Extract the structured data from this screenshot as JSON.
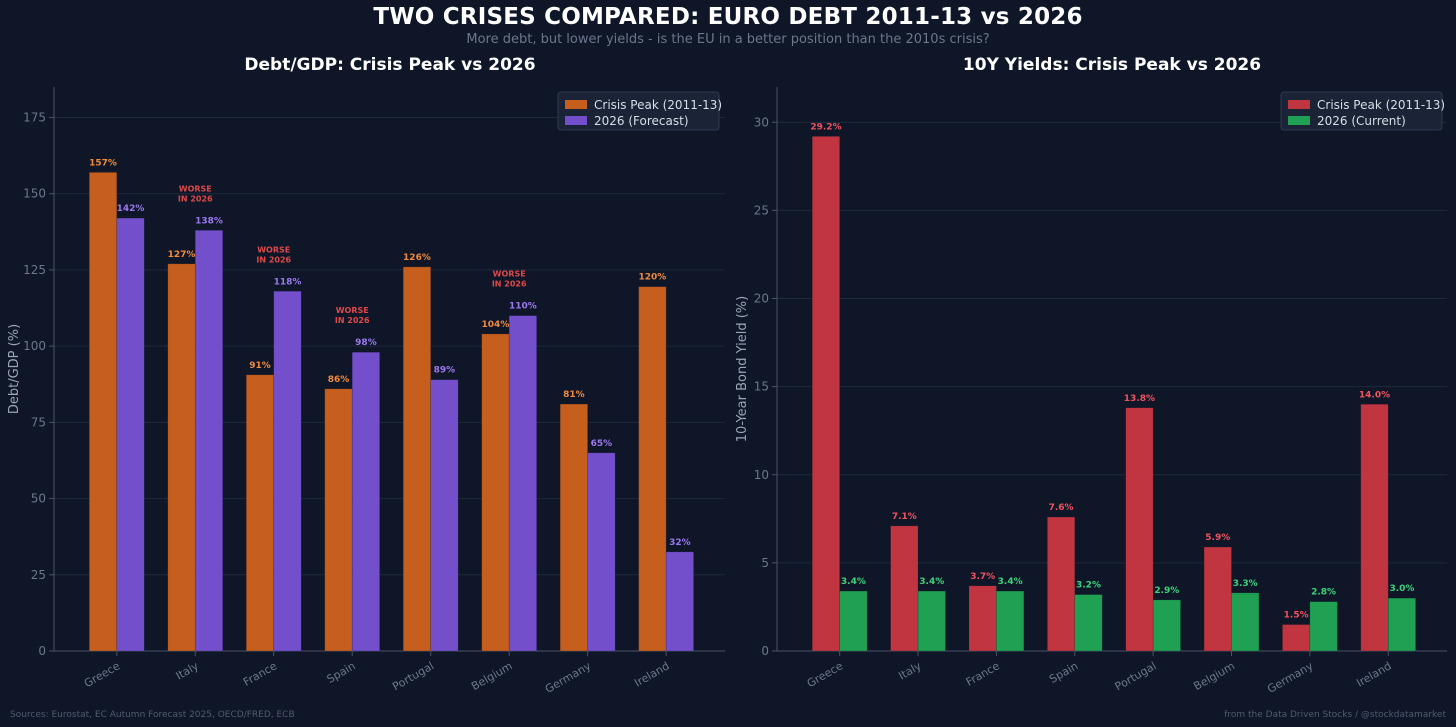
{
  "title": "TWO CRISES COMPARED: EURO DEBT 2011-13 vs 2026",
  "subtitle": "More debt, but lower yields - is the EU in a better position than the 2010s crisis?",
  "footer": {
    "left": "Sources: Eurostat, EC Autumn Forecast 2025, OECD/FRED, ECB",
    "right": "from the Data Driven Stocks / @stockdatamarket"
  },
  "colors": {
    "background": "#0e1628",
    "crisis_debt": "#c65e1d",
    "forecast_debt": "#744fcc",
    "crisis_yield": "#c0353f",
    "current_yield": "#1fa052",
    "crisis_debt_label": "#f08a3c",
    "forecast_debt_label": "#9b78ee",
    "crisis_yield_label": "#f05260",
    "current_yield_label": "#3ed37a",
    "annotation": "#e04848"
  },
  "chart_data": [
    {
      "type": "bar",
      "title": "Debt/GDP: Crisis Peak vs 2026",
      "xlabel": "",
      "ylabel": "Debt/GDP (%)",
      "ylim": [
        0,
        185
      ],
      "yticks": [
        0,
        25,
        50,
        75,
        100,
        125,
        150,
        175
      ],
      "grid": true,
      "legend": "top-right",
      "categories": [
        "Greece",
        "Italy",
        "France",
        "Spain",
        "Portugal",
        "Belgium",
        "Germany",
        "Ireland"
      ],
      "series": [
        {
          "name": "Crisis Peak (2011-13)",
          "values": [
            157,
            127,
            90.6,
            86,
            126,
            104,
            81,
            119.5
          ],
          "labels": [
            "157%",
            "127%",
            "91%",
            "86%",
            "126%",
            "104%",
            "81%",
            "120%"
          ]
        },
        {
          "name": "2026 (Forecast)",
          "values": [
            142,
            138,
            118,
            98,
            89,
            110,
            65,
            32.5
          ],
          "labels": [
            "142%",
            "138%",
            "118%",
            "98%",
            "89%",
            "110%",
            "65%",
            "32%"
          ]
        }
      ],
      "annotations": [
        {
          "category": "Italy",
          "text": [
            "WORSE",
            "IN 2026"
          ]
        },
        {
          "category": "France",
          "text": [
            "WORSE",
            "IN 2026"
          ]
        },
        {
          "category": "Spain",
          "text": [
            "WORSE",
            "IN 2026"
          ]
        },
        {
          "category": "Belgium",
          "text": [
            "WORSE",
            "IN 2026"
          ]
        }
      ]
    },
    {
      "type": "bar",
      "title": "10Y Yields: Crisis Peak vs 2026",
      "xlabel": "",
      "ylabel": "10-Year Bond Yield (%)",
      "ylim": [
        0,
        32
      ],
      "yticks": [
        0,
        5,
        10,
        15,
        20,
        25,
        30
      ],
      "grid": true,
      "legend": "top-right",
      "categories": [
        "Greece",
        "Italy",
        "France",
        "Spain",
        "Portugal",
        "Belgium",
        "Germany",
        "Ireland"
      ],
      "series": [
        {
          "name": "Crisis Peak (2011-13)",
          "values": [
            29.2,
            7.1,
            3.7,
            7.6,
            13.8,
            5.9,
            1.5,
            14.0
          ],
          "labels": [
            "29.2%",
            "7.1%",
            "3.7%",
            "7.6%",
            "13.8%",
            "5.9%",
            "1.5%",
            "14.0%"
          ]
        },
        {
          "name": "2026 (Current)",
          "values": [
            3.4,
            3.4,
            3.4,
            3.2,
            2.9,
            3.3,
            2.8,
            3.0
          ],
          "labels": [
            "3.4%",
            "3.4%",
            "3.4%",
            "3.2%",
            "2.9%",
            "3.3%",
            "2.8%",
            "3.0%"
          ]
        }
      ]
    }
  ]
}
